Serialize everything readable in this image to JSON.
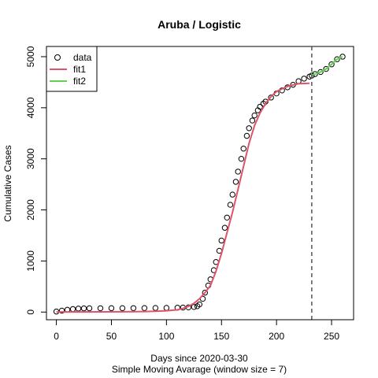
{
  "chart_data": {
    "type": "scatter",
    "title": "Aruba / Logistic",
    "xlabel": "Days since 2020-03-30",
    "subtitle": "Simple Moving Avarage (window size = 7)",
    "ylabel": "Cumulative Cases",
    "xlim": [
      -9,
      270
    ],
    "ylim": [
      -150,
      5200
    ],
    "x_ticks": [
      0,
      50,
      100,
      150,
      200,
      250
    ],
    "y_ticks": [
      0,
      1000,
      2000,
      3000,
      4000,
      5000
    ],
    "vline_x": 232,
    "legend_position": "top-left",
    "legend": [
      {
        "label": "data",
        "marker": "circle",
        "color": "#000000"
      },
      {
        "label": "fit1",
        "marker": "line",
        "color": "#DF536B"
      },
      {
        "label": "fit2",
        "marker": "line",
        "color": "#61D04F"
      }
    ],
    "series": [
      {
        "name": "data",
        "kind": "points",
        "color": "#000000",
        "points": [
          [
            0,
            10
          ],
          [
            5,
            28
          ],
          [
            10,
            45
          ],
          [
            15,
            58
          ],
          [
            20,
            68
          ],
          [
            25,
            72
          ],
          [
            30,
            74
          ],
          [
            40,
            75
          ],
          [
            50,
            76
          ],
          [
            60,
            76
          ],
          [
            70,
            77
          ],
          [
            80,
            78
          ],
          [
            90,
            80
          ],
          [
            100,
            82
          ],
          [
            110,
            85
          ],
          [
            115,
            88
          ],
          [
            120,
            92
          ],
          [
            125,
            100
          ],
          [
            128,
            115
          ],
          [
            130,
            150
          ],
          [
            133,
            260
          ],
          [
            135,
            380
          ],
          [
            138,
            520
          ],
          [
            140,
            640
          ],
          [
            143,
            820
          ],
          [
            145,
            980
          ],
          [
            148,
            1200
          ],
          [
            150,
            1400
          ],
          [
            153,
            1650
          ],
          [
            155,
            1850
          ],
          [
            158,
            2100
          ],
          [
            160,
            2300
          ],
          [
            163,
            2550
          ],
          [
            165,
            2750
          ],
          [
            168,
            3000
          ],
          [
            170,
            3200
          ],
          [
            173,
            3450
          ],
          [
            175,
            3600
          ],
          [
            178,
            3750
          ],
          [
            180,
            3850
          ],
          [
            183,
            3950
          ],
          [
            185,
            4020
          ],
          [
            188,
            4080
          ],
          [
            190,
            4120
          ],
          [
            195,
            4200
          ],
          [
            200,
            4280
          ],
          [
            205,
            4340
          ],
          [
            210,
            4400
          ],
          [
            215,
            4450
          ],
          [
            220,
            4520
          ],
          [
            225,
            4570
          ],
          [
            230,
            4610
          ],
          [
            232,
            4630
          ],
          [
            235,
            4660
          ],
          [
            240,
            4700
          ],
          [
            245,
            4760
          ],
          [
            250,
            4850
          ],
          [
            255,
            4950
          ],
          [
            260,
            5000
          ]
        ]
      },
      {
        "name": "fit1",
        "kind": "line",
        "color": "#DF536B",
        "points": [
          [
            0,
            2
          ],
          [
            20,
            3
          ],
          [
            40,
            4
          ],
          [
            60,
            6
          ],
          [
            80,
            10
          ],
          [
            90,
            16
          ],
          [
            100,
            25
          ],
          [
            110,
            45
          ],
          [
            115,
            70
          ],
          [
            120,
            110
          ],
          [
            125,
            170
          ],
          [
            130,
            260
          ],
          [
            135,
            380
          ],
          [
            140,
            520
          ],
          [
            145,
            800
          ],
          [
            150,
            1150
          ],
          [
            155,
            1550
          ],
          [
            160,
            1950
          ],
          [
            165,
            2400
          ],
          [
            170,
            2850
          ],
          [
            175,
            3300
          ],
          [
            180,
            3650
          ],
          [
            185,
            3900
          ],
          [
            190,
            4080
          ],
          [
            195,
            4220
          ],
          [
            200,
            4320
          ],
          [
            210,
            4420
          ],
          [
            220,
            4470
          ],
          [
            230,
            4480
          ]
        ]
      },
      {
        "name": "fit2",
        "kind": "line",
        "color": "#61D04F",
        "points": [
          [
            232,
            4630
          ],
          [
            235,
            4660
          ],
          [
            240,
            4700
          ],
          [
            245,
            4760
          ],
          [
            250,
            4850
          ],
          [
            255,
            4950
          ],
          [
            260,
            5000
          ]
        ]
      }
    ]
  }
}
